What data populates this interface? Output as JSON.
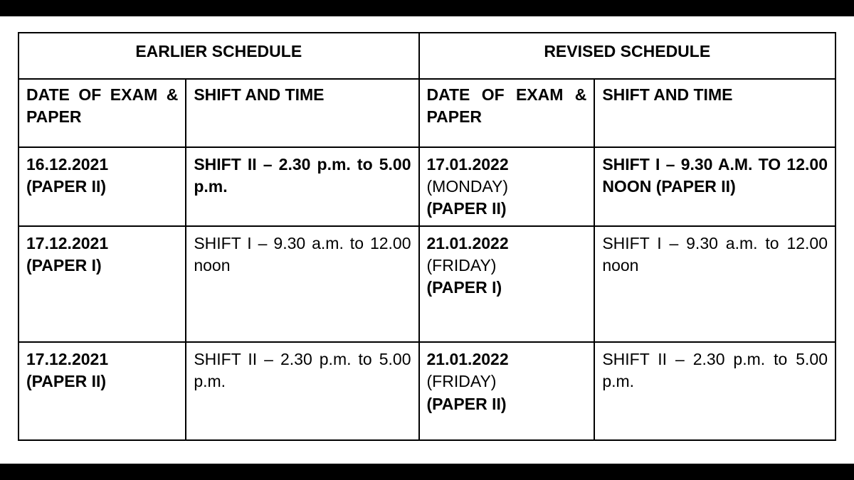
{
  "table": {
    "background_color": "#ffffff",
    "border_color": "#000000",
    "text_color": "#000000",
    "font_size_pt": 17,
    "headers": {
      "earlier": "EARLIER SCHEDULE",
      "revised": "REVISED SCHEDULE"
    },
    "subheaders": {
      "earlier_date": "DATE OF EXAM & PAPER",
      "earlier_shift": "SHIFT AND TIME",
      "revised_date": "DATE OF EXAM & PAPER",
      "revised_shift": "SHIFT AND TIME"
    },
    "rows": [
      {
        "earlier_date_line1": "16.12.2021",
        "earlier_date_line2": "(PAPER II)",
        "earlier_shift_bold": "SHIFT II – 2.30 p.m. to 5.00 p.m.",
        "revised_date_line1": "17.01.2022",
        "revised_date_line2": "(MONDAY)",
        "revised_date_line3": "(PAPER II)",
        "revised_shift_bold": "SHIFT I – 9.30 A.M. TO 12.00 NOON (PAPER II)"
      },
      {
        "earlier_date_line1": "17.12.2021",
        "earlier_date_line2": "(PAPER I)",
        "earlier_shift_plain": "SHIFT I – 9.30 a.m. to 12.00 noon",
        "revised_date_line1": "21.01.2022",
        "revised_date_line2": "(FRIDAY)",
        "revised_date_line3": "(PAPER I)",
        "revised_shift_plain": "SHIFT I – 9.30 a.m. to 12.00 noon"
      },
      {
        "earlier_date_line1": "17.12.2021",
        "earlier_date_line2": "(PAPER II)",
        "earlier_shift_plain": "SHIFT II – 2.30 p.m. to 5.00 p.m.",
        "revised_date_line1": "21.01.2022",
        "revised_date_line2": "(FRIDAY)",
        "revised_date_line3": "(PAPER II)",
        "revised_shift_plain": "SHIFT II – 2.30 p.m. to 5.00 p.m."
      }
    ]
  }
}
